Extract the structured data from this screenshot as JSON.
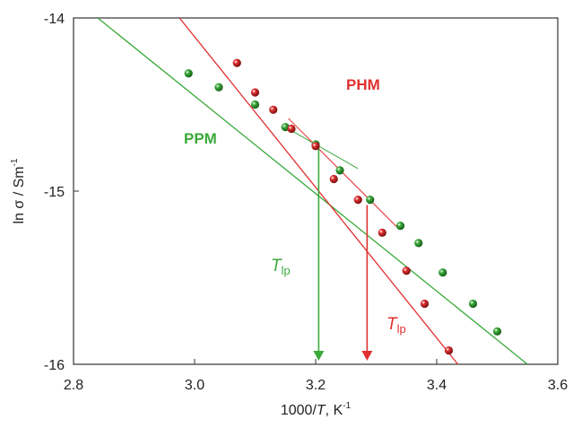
{
  "chart_data": {
    "type": "scatter",
    "xlabel_prefix": "1000/",
    "xlabel_var": "T",
    "xlabel_suffix": ", K",
    "xlabel_sup": "-1",
    "ylabel": "ln σ / Sm",
    "ylabel_sup": "-1",
    "xlim": [
      2.8,
      3.6
    ],
    "ylim": [
      -16,
      -14
    ],
    "xticks": [
      2.8,
      3.0,
      3.2,
      3.4,
      3.6
    ],
    "xtick_labels": [
      "2.8",
      "3.0",
      "3.2",
      "3.4",
      "3.6"
    ],
    "yticks": [
      -16,
      -15,
      -14
    ],
    "ytick_labels": [
      "-16",
      "-15",
      "-14"
    ],
    "grid": false,
    "series": [
      {
        "name": "PPM",
        "color": "#3aa93a",
        "points": [
          {
            "x": 2.99,
            "y": -14.32
          },
          {
            "x": 3.04,
            "y": -14.4
          },
          {
            "x": 3.1,
            "y": -14.5
          },
          {
            "x": 3.15,
            "y": -14.63
          },
          {
            "x": 3.2,
            "y": -14.73
          },
          {
            "x": 3.24,
            "y": -14.88
          },
          {
            "x": 3.29,
            "y": -15.05
          },
          {
            "x": 3.34,
            "y": -15.2
          },
          {
            "x": 3.37,
            "y": -15.3
          },
          {
            "x": 3.41,
            "y": -15.47
          },
          {
            "x": 3.46,
            "y": -15.65
          },
          {
            "x": 3.5,
            "y": -15.81
          }
        ],
        "fit_lines": [
          {
            "x": [
              2.84,
              3.55
            ],
            "y": [
              -14.0,
              -16.0
            ]
          },
          {
            "x": [
              3.155,
              3.27
            ],
            "y": [
              -14.64,
              -14.87
            ]
          }
        ],
        "transition_x": 3.205,
        "transition_y": -14.74
      },
      {
        "name": "PHM",
        "color": "#e03030",
        "points": [
          {
            "x": 3.07,
            "y": -14.26
          },
          {
            "x": 3.1,
            "y": -14.43
          },
          {
            "x": 3.13,
            "y": -14.53
          },
          {
            "x": 3.16,
            "y": -14.64
          },
          {
            "x": 3.2,
            "y": -14.74
          },
          {
            "x": 3.23,
            "y": -14.93
          },
          {
            "x": 3.27,
            "y": -15.05
          },
          {
            "x": 3.31,
            "y": -15.24
          },
          {
            "x": 3.35,
            "y": -15.46
          },
          {
            "x": 3.38,
            "y": -15.65
          },
          {
            "x": 3.42,
            "y": -15.92
          }
        ],
        "fit_lines": [
          {
            "x": [
              2.975,
              3.435
            ],
            "y": [
              -14.0,
              -16.0
            ]
          },
          {
            "x": [
              3.155,
              3.335
            ],
            "y": [
              -14.58,
              -15.21
            ]
          }
        ],
        "transition_x": 3.285,
        "transition_y": -15.08
      }
    ],
    "annotations": [
      {
        "text": "PPM",
        "color": "#3aa93a"
      },
      {
        "text": "PHM",
        "color": "#e03030"
      },
      {
        "text": "T",
        "sub": "lp",
        "color": "#3aa93a"
      },
      {
        "text": "T",
        "sub": "lp",
        "color": "#e03030"
      }
    ]
  }
}
